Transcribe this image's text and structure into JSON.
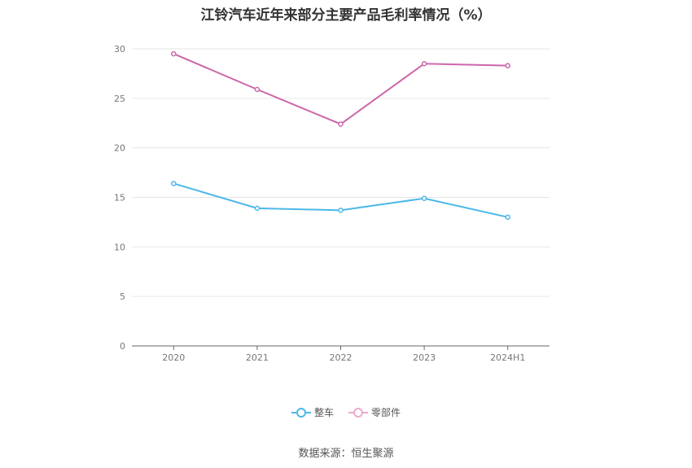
{
  "chart_data": {
    "type": "line",
    "title": "江铃汽车近年来部分主要产品毛利率情况（%）",
    "categories": [
      "2020",
      "2021",
      "2022",
      "2023",
      "2024H1"
    ],
    "ylim": [
      0,
      30
    ],
    "yticks": [
      0,
      5,
      10,
      15,
      20,
      25,
      30
    ],
    "grid": true,
    "legend_position": "bottom",
    "series": [
      {
        "name": "整车",
        "color": "#4db8e8",
        "values": [
          16.4,
          13.9,
          13.7,
          14.9,
          13.0
        ]
      },
      {
        "name": "零部件",
        "color": "#cc66aa",
        "values": [
          29.5,
          25.9,
          22.4,
          28.5,
          28.3
        ]
      }
    ]
  },
  "legend_colors": [
    "#4db8e8",
    "#f0a8cc"
  ],
  "source": "数据来源：恒生聚源"
}
